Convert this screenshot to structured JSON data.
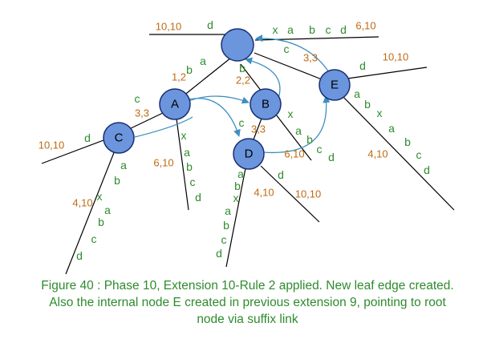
{
  "nodes": {
    "root": "",
    "A": "A",
    "B": "B",
    "C": "C",
    "D": "D",
    "E": "E"
  },
  "root_edges": {
    "left_label": "d",
    "left_index": "10,10",
    "right_label": [
      "x",
      "a",
      "b",
      "c",
      "d"
    ],
    "right_index": "6,10",
    "to_A_label": [
      "b",
      "a"
    ],
    "to_A_index": "1,2",
    "to_B_label": "b",
    "to_B_index": "2,2",
    "to_E_label": "c",
    "to_E_index": "3,3"
  },
  "node_A": {
    "to_C_label": "c",
    "to_C_index": "3,3",
    "leaf_label": [
      "x",
      "a",
      "b",
      "c",
      "d"
    ],
    "leaf_index": "6,10"
  },
  "node_C": {
    "leaf_d_label": "d",
    "leaf_d_index": "10,10",
    "leaf_long_label": [
      "a",
      "b",
      "x",
      "a",
      "b",
      "c",
      "d"
    ],
    "leaf_long_index": "4,10"
  },
  "node_B": {
    "to_D_label": "c",
    "to_D_index": "3,3",
    "leaf_label": [
      "x",
      "a",
      "b",
      "c",
      "d"
    ],
    "leaf_index": "6,10"
  },
  "node_D": {
    "leaf_long_label": [
      "a",
      "b",
      "x",
      "a",
      "b",
      "c",
      "d"
    ],
    "leaf_long_index": "4,10",
    "leaf_d_label": "d",
    "leaf_d_index": "10,10"
  },
  "node_E": {
    "leaf_d_label": "d",
    "leaf_d_index": "10,10",
    "leaf_long_label": [
      "a",
      "b",
      "x",
      "a",
      "b",
      "c",
      "d"
    ],
    "leaf_long_index": "4,10"
  },
  "caption": [
    "Figure 40 : Phase 10, Extension 10-Rule 2 applied. New leaf edge created.",
    "Also the internal node E created in previous extension 9, pointing to root",
    "node via suffix link"
  ],
  "colors": {
    "node_fill": "#6b95dd",
    "node_stroke": "#1a2f70",
    "edge_label": "#2e8b2e",
    "index_label": "#c06a14",
    "suffix_link": "#3d8fc0"
  }
}
